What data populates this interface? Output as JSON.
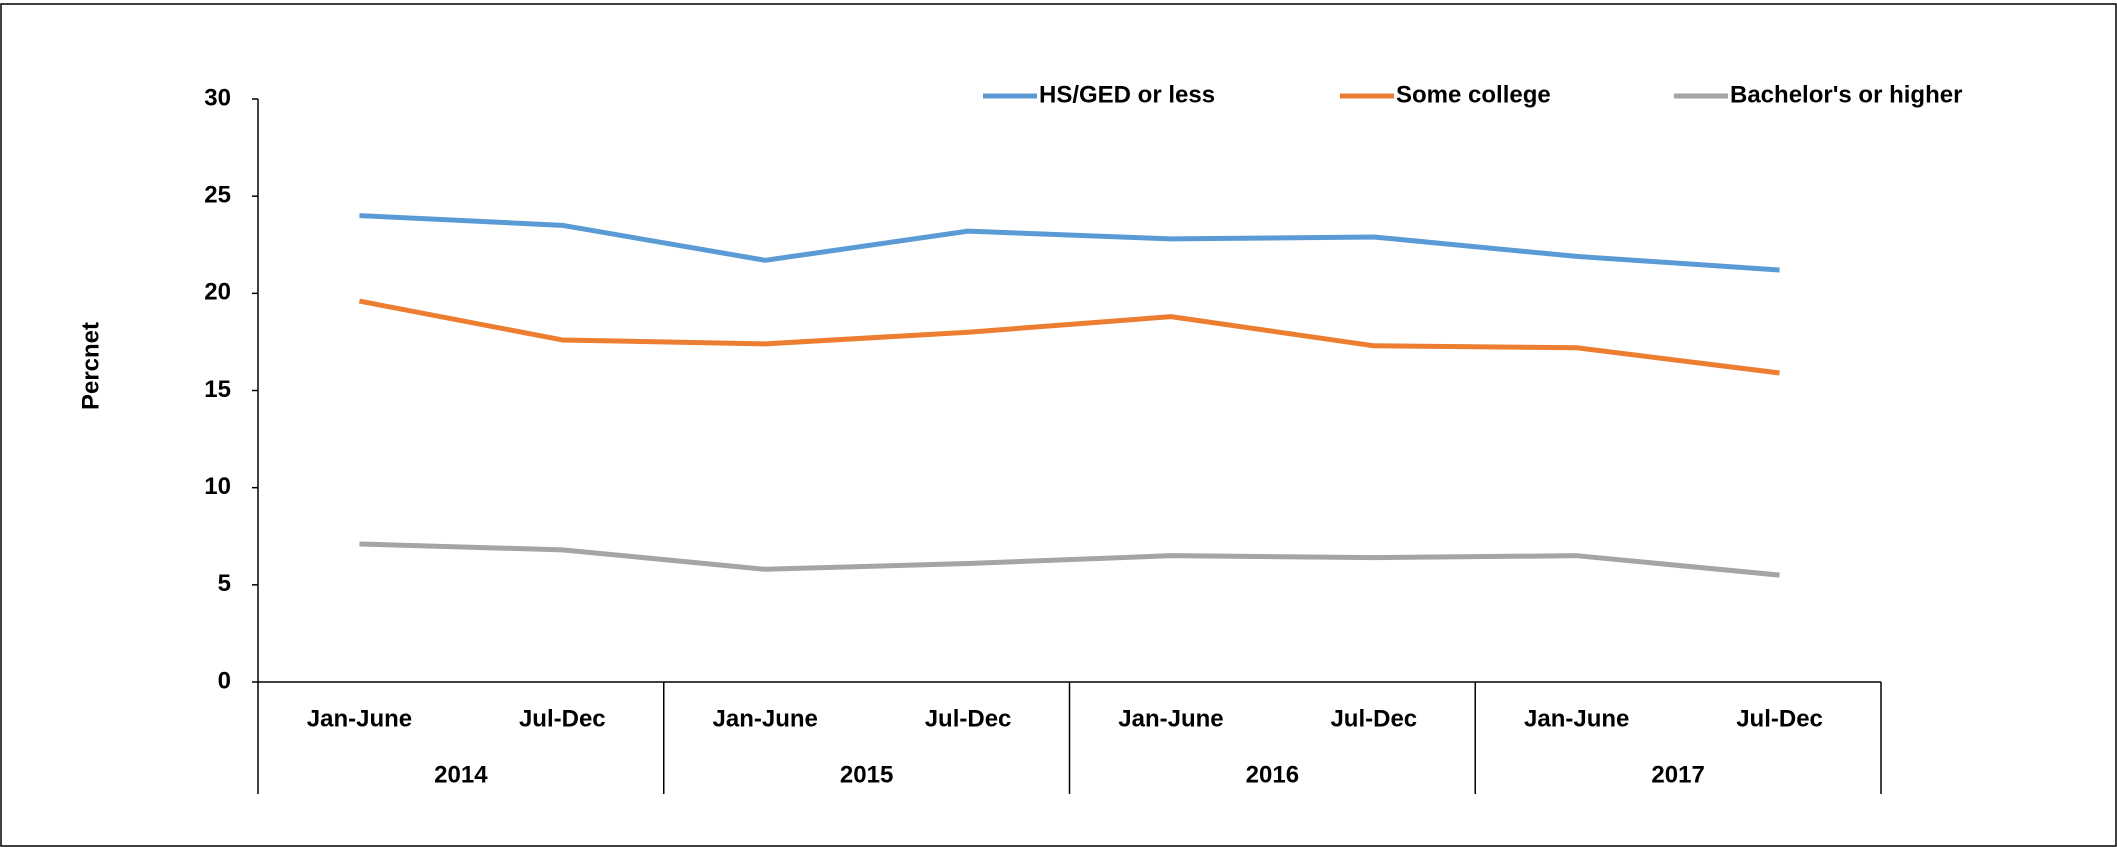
{
  "chart_data": {
    "type": "line",
    "y_label": "Percnet",
    "categories": [
      "Jan-June",
      "Jul-Dec",
      "Jan-June",
      "Jul-Dec",
      "Jan-June",
      "Jul-Dec",
      "Jan-June",
      "Jul-Dec"
    ],
    "category_groups": [
      "2014",
      "2015",
      "2016",
      "2017"
    ],
    "series": [
      {
        "name": "HS/GED or less",
        "color": "#5b9bd5",
        "values": [
          24.0,
          23.5,
          21.7,
          23.2,
          22.8,
          22.9,
          21.9,
          21.2
        ]
      },
      {
        "name": "Some college",
        "color": "#ed7d31",
        "values": [
          19.6,
          17.6,
          17.4,
          18.0,
          18.8,
          17.3,
          17.2,
          15.9
        ]
      },
      {
        "name": "Bachelor's or higher",
        "color": "#a5a5a5",
        "values": [
          7.1,
          6.8,
          5.8,
          6.1,
          6.5,
          6.4,
          6.5,
          5.5
        ]
      }
    ],
    "ylim": [
      0,
      30
    ],
    "yticks": [
      0,
      5,
      10,
      15,
      20,
      25,
      30
    ],
    "grid": false,
    "legend": "top"
  }
}
